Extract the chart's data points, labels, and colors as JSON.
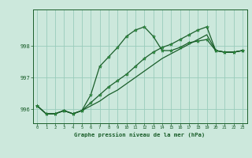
{
  "title": "Graphe pression niveau de la mer (hPa)",
  "bg_color": "#cce8dc",
  "grid_color": "#99ccbb",
  "line_color": "#1a5e2a",
  "marker_color": "#33aa44",
  "xlim": [
    -0.5,
    23.5
  ],
  "ylim": [
    995.55,
    999.15
  ],
  "yticks": [
    996,
    997,
    998
  ],
  "xticks": [
    0,
    1,
    2,
    3,
    4,
    5,
    6,
    7,
    8,
    9,
    10,
    11,
    12,
    13,
    14,
    15,
    16,
    17,
    18,
    19,
    20,
    21,
    22,
    23
  ],
  "series1_x": [
    0,
    1,
    2,
    3,
    4,
    5,
    6,
    7,
    8,
    9,
    10,
    11,
    12,
    13,
    14,
    15,
    16,
    17,
    18,
    19,
    20,
    21,
    22,
    23
  ],
  "series1_y": [
    996.1,
    995.85,
    995.85,
    995.95,
    995.85,
    995.95,
    996.45,
    997.35,
    997.65,
    997.95,
    998.3,
    998.5,
    998.6,
    998.3,
    997.85,
    997.85,
    997.95,
    998.1,
    998.15,
    998.2,
    997.85,
    997.8,
    997.8,
    997.85
  ],
  "series2_x": [
    0,
    1,
    2,
    3,
    4,
    5,
    6,
    7,
    8,
    9,
    10,
    11,
    12,
    13,
    14,
    15,
    16,
    17,
    18,
    19,
    20,
    21,
    22,
    23
  ],
  "series2_y": [
    996.1,
    995.85,
    995.85,
    995.95,
    995.85,
    995.95,
    996.2,
    996.45,
    996.7,
    996.9,
    997.1,
    997.35,
    997.6,
    997.8,
    997.95,
    998.05,
    998.2,
    998.35,
    998.5,
    998.6,
    997.85,
    997.8,
    997.8,
    997.85
  ],
  "series3_x": [
    0,
    1,
    2,
    3,
    4,
    5,
    6,
    7,
    8,
    9,
    10,
    11,
    12,
    13,
    14,
    15,
    16,
    17,
    18,
    19,
    20,
    21,
    22,
    23
  ],
  "series3_y": [
    996.1,
    995.85,
    995.85,
    995.95,
    995.85,
    995.95,
    996.1,
    996.25,
    996.45,
    996.6,
    996.8,
    997.0,
    997.2,
    997.4,
    997.6,
    997.75,
    997.9,
    998.05,
    998.2,
    998.35,
    997.85,
    997.8,
    997.8,
    997.85
  ]
}
